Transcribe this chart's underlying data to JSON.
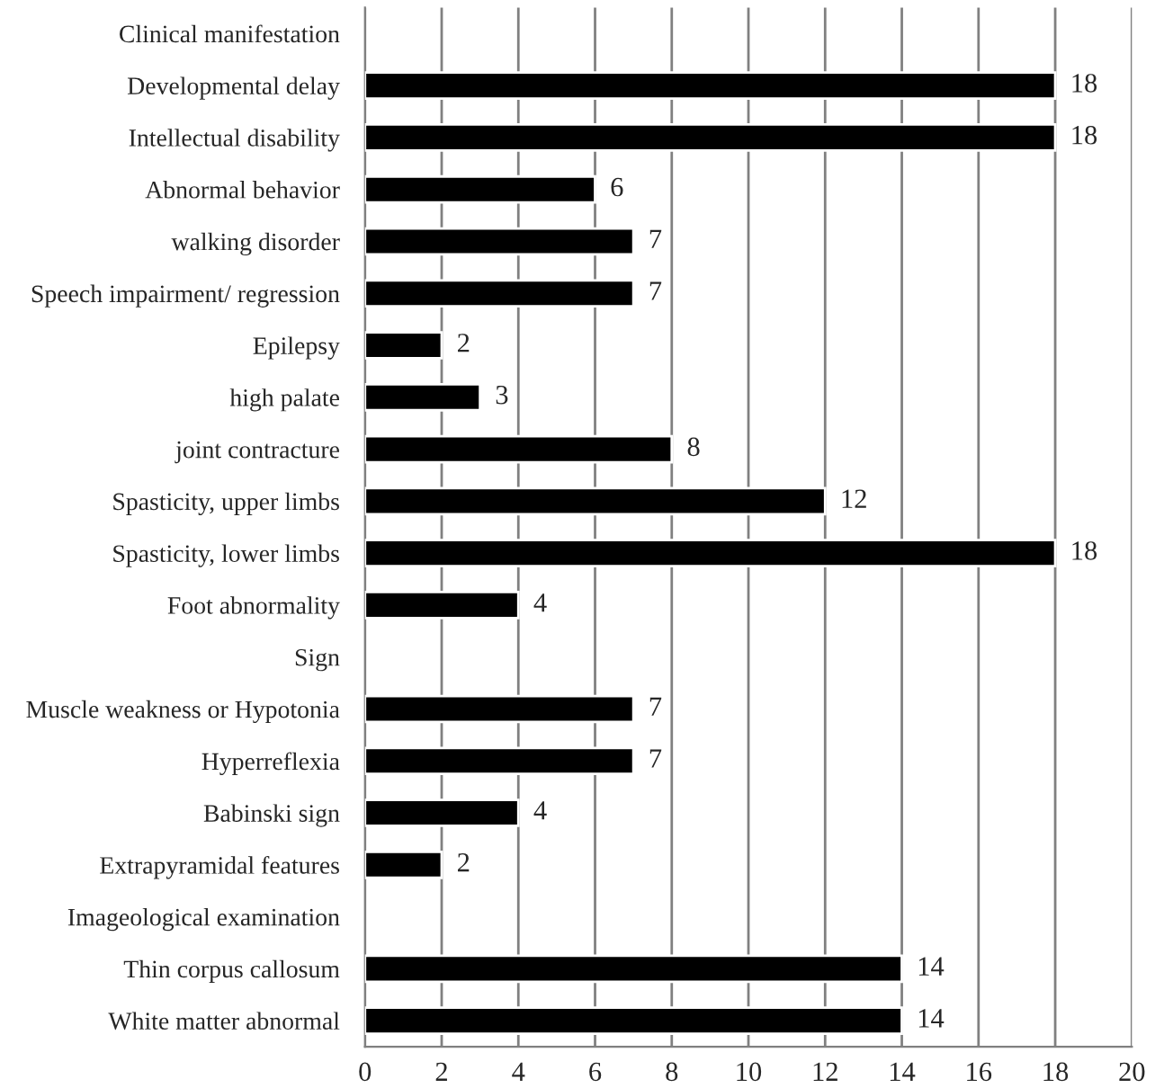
{
  "chart_data": {
    "type": "bar",
    "orientation": "horizontal",
    "categories": [
      "Clinical manifestation",
      "Developmental delay",
      "Intellectual disability",
      "Abnormal behavior",
      "walking disorder",
      "Speech impairment/ regression",
      "Epilepsy",
      "high palate",
      "joint contracture",
      "Spasticity, upper limbs",
      "Spasticity, lower limbs",
      "Foot abnormality",
      "Sign",
      "Muscle weakness or Hypotonia",
      "Hyperreflexia",
      "Babinski sign",
      "Extrapyramidal features",
      "Imageological examination",
      "Thin corpus callosum",
      "White matter abnormal"
    ],
    "values": [
      null,
      18,
      18,
      6,
      7,
      7,
      2,
      3,
      8,
      12,
      18,
      4,
      null,
      7,
      7,
      4,
      2,
      null,
      14,
      14
    ],
    "color": "#000000",
    "xlim": [
      0,
      20
    ],
    "xticks": [
      0,
      2,
      4,
      6,
      8,
      10,
      12,
      14,
      16,
      18,
      20
    ],
    "grid": "x",
    "data_labels": true
  }
}
